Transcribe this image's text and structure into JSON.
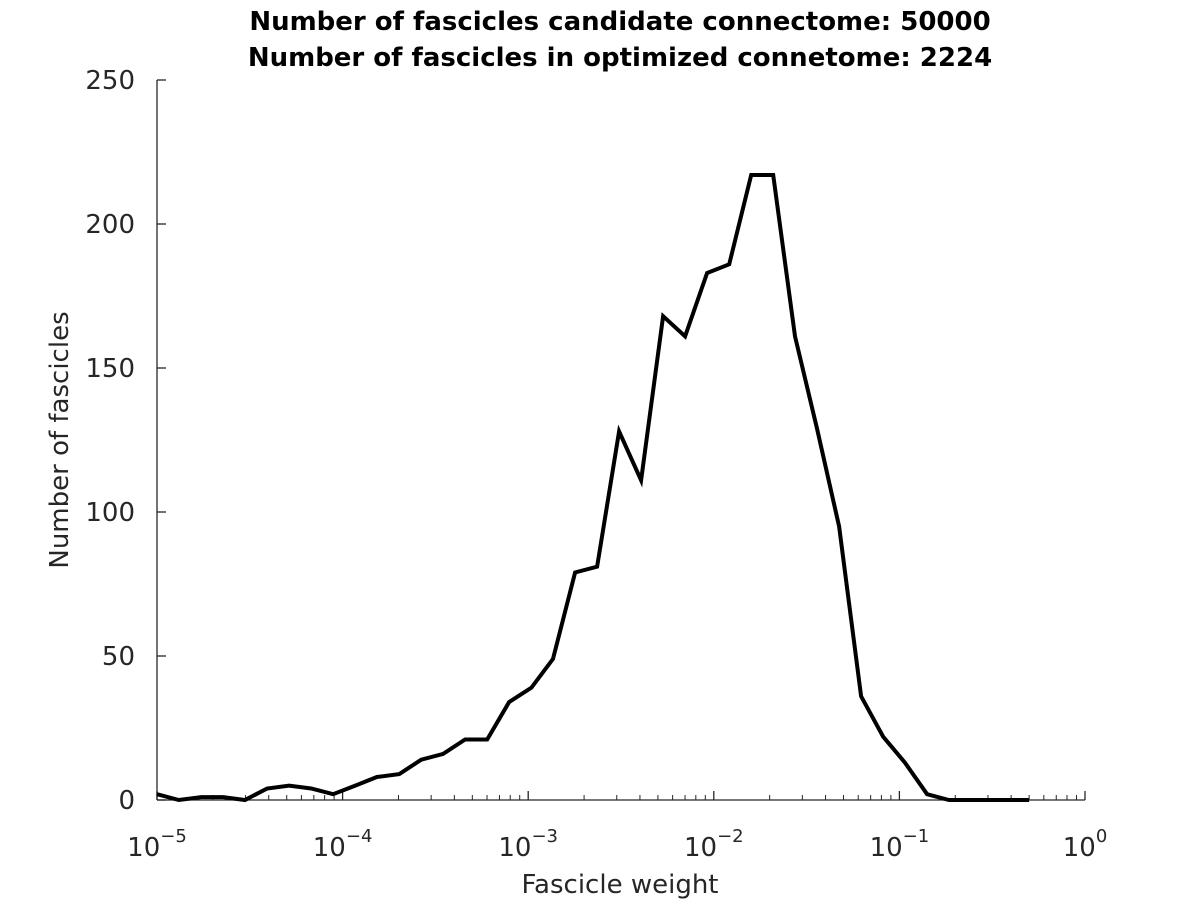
{
  "chart_data": {
    "type": "line",
    "title": [
      "Number of fascicles candidate connectome: 50000",
      "Number of fascicles in optimized connetome: 2224"
    ],
    "xlabel": "Fascicle weight",
    "ylabel": "Number of fascicles",
    "xscale": "log",
    "xlim": [
      1e-05,
      1
    ],
    "ylim": [
      0,
      250
    ],
    "grid": false,
    "line_color": "#000000",
    "axis_color": "#262626",
    "y_ticks": [
      0,
      50,
      100,
      150,
      200,
      250
    ],
    "x_ticks": [
      {
        "base": "10",
        "exp": "−5",
        "value": 1e-05
      },
      {
        "base": "10",
        "exp": "−4",
        "value": 0.0001
      },
      {
        "base": "10",
        "exp": "−3",
        "value": 0.001
      },
      {
        "base": "10",
        "exp": "−2",
        "value": 0.01
      },
      {
        "base": "10",
        "exp": "−1",
        "value": 0.1
      },
      {
        "base": "10",
        "exp": "0",
        "value": 1
      }
    ],
    "series": [
      {
        "x": [
          1e-05,
          1.31e-05,
          1.73e-05,
          2.27e-05,
          2.98e-05,
          3.92e-05,
          5.15e-05,
          6.77e-05,
          8.89e-05,
          0.000117,
          0.000153,
          0.000202,
          0.000265,
          0.000348,
          0.000457,
          0.000601,
          0.000789,
          0.00104,
          0.00136,
          0.00179,
          0.00235,
          0.00309,
          0.00406,
          0.00533,
          0.007,
          0.0092,
          0.0121,
          0.0159,
          0.0209,
          0.0274,
          0.036,
          0.0473,
          0.0622,
          0.0817,
          0.107,
          0.141,
          0.185,
          0.244,
          0.32,
          0.42,
          0.5
        ],
        "y": [
          2,
          0,
          1,
          1,
          0,
          4,
          5,
          4,
          2,
          5,
          8,
          9,
          14,
          16,
          21,
          21,
          34,
          39,
          49,
          79,
          81,
          128,
          111,
          168,
          161,
          183,
          186,
          217,
          217,
          161,
          129,
          95,
          36,
          22,
          13,
          2,
          0,
          0,
          0,
          0,
          0
        ]
      }
    ]
  }
}
